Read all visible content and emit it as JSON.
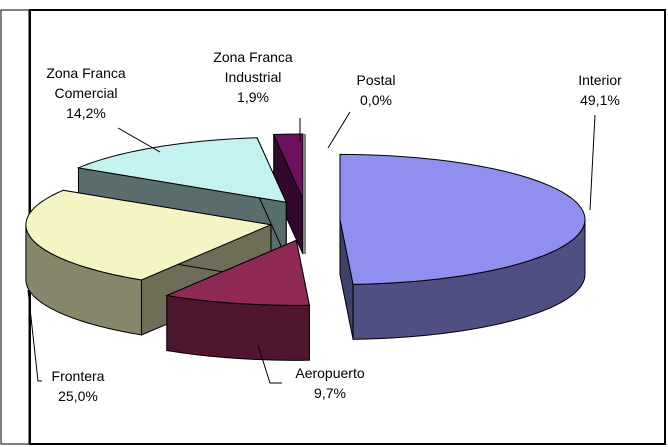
{
  "chart_data": {
    "type": "pie",
    "categories": [
      "Interior",
      "Aeropuerto",
      "Frontera",
      "Zona Franca\nComercial",
      "Zona Franca\nIndustrial",
      "Postal"
    ],
    "values": [
      49.1,
      9.7,
      25.0,
      14.2,
      1.9,
      0.0
    ],
    "value_labels": [
      "49,1%",
      "9,7%",
      "25,0%",
      "14,2%",
      "1,9%",
      "0,0%"
    ],
    "colors": [
      "#8f8ff0",
      "#8e2a55",
      "#f4f4c4",
      "#c4f2f0",
      "#6e1060",
      "#c0c0c0"
    ]
  }
}
